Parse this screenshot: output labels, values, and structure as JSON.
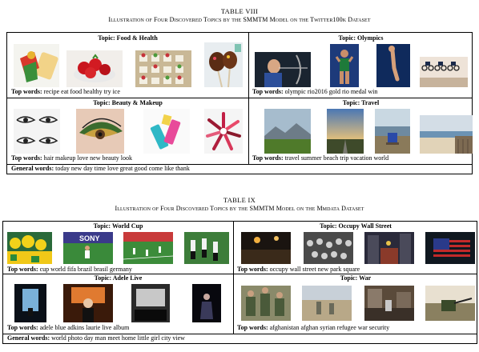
{
  "table8": {
    "number": "TABLE VIII",
    "title": "Illustration of Four Discovered Topics by the SMMTM Model on the Twitter100k Dataset",
    "cells": [
      {
        "topic": "Topic: Food & Health",
        "words_label": "Top words:",
        "words": "recipe eat food healthy try ice",
        "images": [
          "food-sweets-icon",
          "strawberries-icon",
          "dessert-tray-icon",
          "chocolate-pops-icon"
        ]
      },
      {
        "topic": "Topic: Olympics",
        "words_label": "Top words:",
        "words": "olympic rio2016 gold rio medal win",
        "images": [
          "archer-icon",
          "athlete-icon",
          "diver-icon",
          "cyclists-icon"
        ]
      },
      {
        "topic": "Topic: Beauty & Makeup",
        "words_label": "Top words:",
        "words": "hair makeup love new beauty look",
        "images": [
          "eyes-sketch-icon",
          "eye-makeup-icon",
          "lipstick-icon",
          "lipstick-circle-icon"
        ]
      },
      {
        "topic": "Topic: Travel",
        "words_label": "Top words:",
        "words": "travel summer beach trip vacation world",
        "images": [
          "mountain-field-icon",
          "sunset-road-icon",
          "lake-chair-icon",
          "beach-icon"
        ]
      }
    ],
    "general_label": "General words:",
    "general_words": "today new day time love great good come like thank"
  },
  "table9": {
    "number": "TABLE IX",
    "title": "Illustration of Four Discovered Topics by the SMMTM Model on the Mmdata Dataset",
    "cells": [
      {
        "topic": "Topic: World Cup",
        "words_label": "Top words:",
        "words": "cup world fifa brazil brasil germany",
        "images": [
          "fans-icon",
          "sony-player-icon",
          "football-field-icon",
          "players-icon"
        ]
      },
      {
        "topic": "Topic: Occupy Wall Street",
        "words_label": "Top words:",
        "words": "occupy wall street new park square",
        "images": [
          "night-crowd-icon",
          "protest-crowd-icon",
          "city-street-icon",
          "flag-icon"
        ]
      },
      {
        "topic": "Topic: Adele Live",
        "words_label": "Top words:",
        "words": "adele blue adkins laurie live album",
        "images": [
          "stage-icon",
          "singer-icon",
          "concert-screen-icon",
          "performer-icon"
        ]
      },
      {
        "topic": "Topic: War",
        "words_label": "Top words:",
        "words": "afghanistan afghan syrian refugee war security",
        "images": [
          "soldiers-icon",
          "desert-walk-icon",
          "rubble-icon",
          "gunner-icon"
        ]
      }
    ],
    "general_label": "General words:",
    "general_words": "world photo day man meet home little girl city view"
  }
}
